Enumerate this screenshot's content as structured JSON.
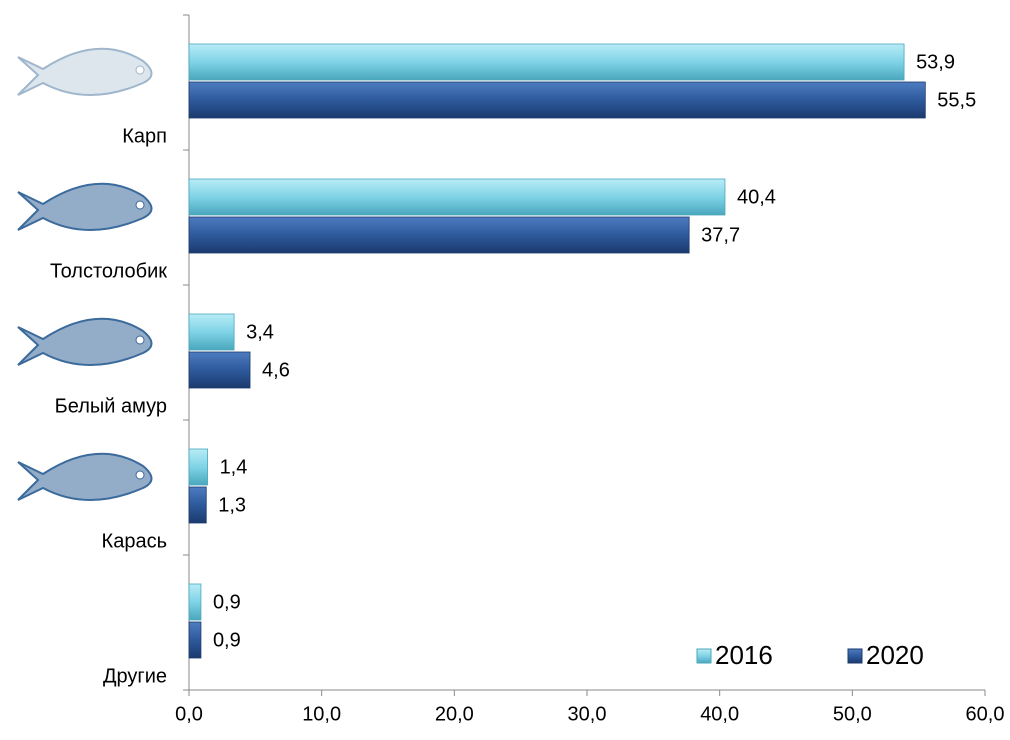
{
  "chart_data": {
    "type": "hbar",
    "categories": [
      "Карп",
      "Толстолобик",
      "Белый амур",
      "Карась",
      "Другие"
    ],
    "series": [
      {
        "name": "2016",
        "color": "#7fd3e6",
        "values": [
          53.9,
          40.4,
          3.4,
          1.4,
          0.9
        ],
        "value_labels": [
          "53,9",
          "40,4",
          "3,4",
          "1,4",
          "0,9"
        ]
      },
      {
        "name": "2020",
        "color": "#2e5a9c",
        "values": [
          55.5,
          37.7,
          4.6,
          1.3,
          0.9
        ],
        "value_labels": [
          "55,5",
          "37,7",
          "4,6",
          "1,3",
          "0,9"
        ]
      }
    ],
    "xlim": [
      0,
      60
    ],
    "xticks": [
      {
        "value": 0,
        "label": "0,0"
      },
      {
        "value": 10,
        "label": "10,0"
      },
      {
        "value": 20,
        "label": "20,0"
      },
      {
        "value": 30,
        "label": "30,0"
      },
      {
        "value": 40,
        "label": "40,0"
      },
      {
        "value": 50,
        "label": "50,0"
      },
      {
        "value": 60,
        "label": "60,0"
      }
    ],
    "legend": "lower right"
  }
}
